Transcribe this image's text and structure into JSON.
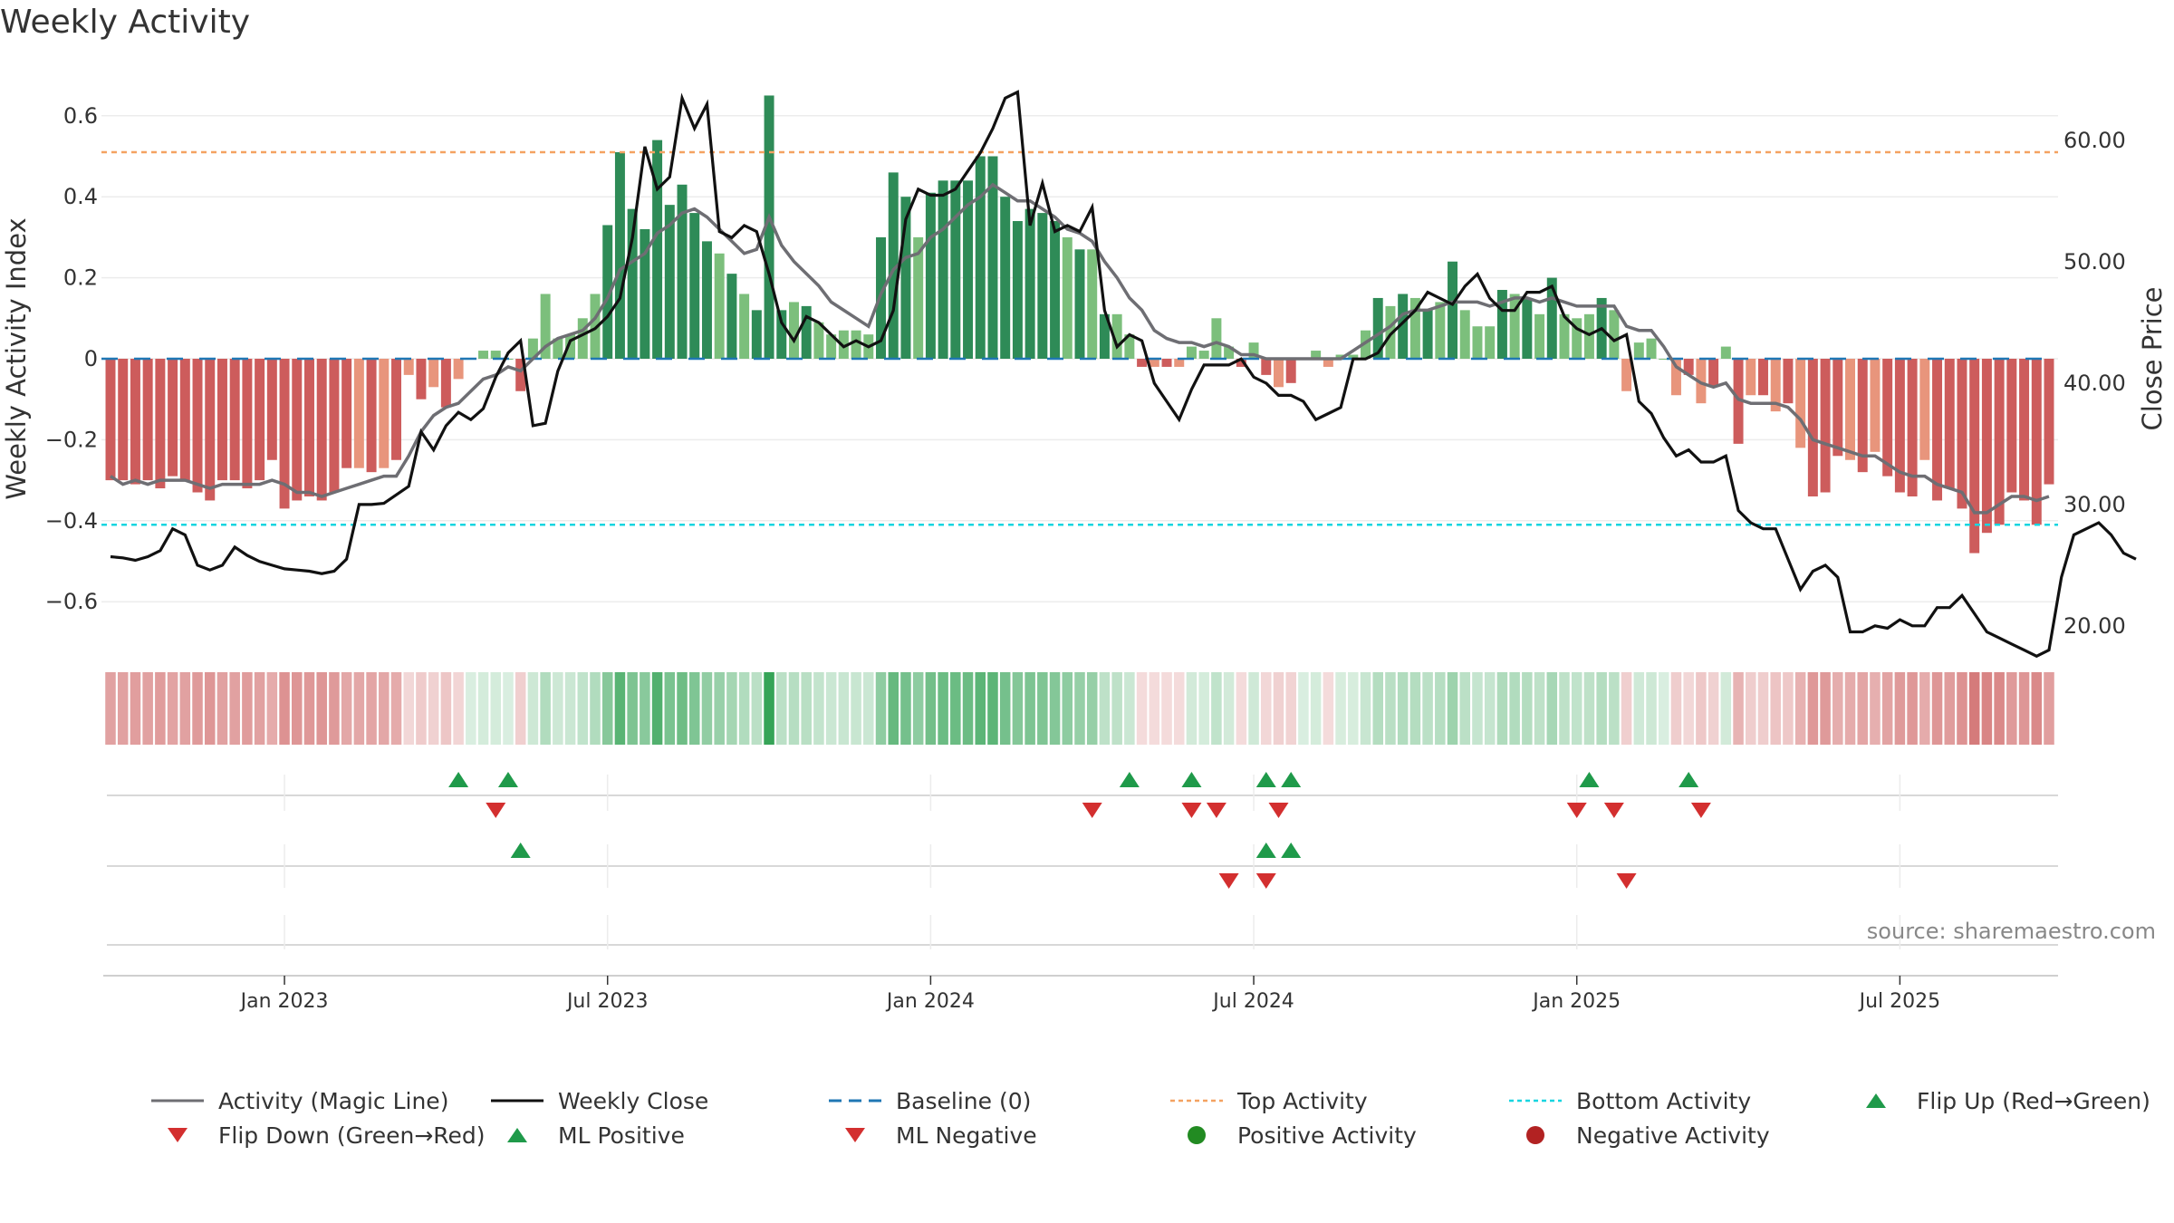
{
  "colors": {
    "strong_green": "#2e8b57",
    "light_green": "#7cbf7c",
    "strong_red": "#cd5c5c",
    "light_red": "#e8957c",
    "magic_line": "#6e6e73",
    "close_line": "#111111",
    "baseline": "#1f77b4",
    "top_line": "#f4a261",
    "bottom_line": "#17d5e0",
    "marker_green": "#1f9a4a",
    "marker_red": "#d32f2f"
  },
  "chart_data": {
    "type": "bar+line",
    "title": "Weekly Activity",
    "ylabel_left": "Weekly Activity Index",
    "ylabel_right": "Close Price",
    "source": "source: sharemaestro.com",
    "left_ticks": [
      "0.6",
      "0.4",
      "0.2",
      "0",
      "−0.2",
      "−0.4",
      "−0.6"
    ],
    "left_tick_values": [
      0.6,
      0.4,
      0.2,
      0,
      -0.2,
      -0.4,
      -0.6
    ],
    "right_ticks": [
      "60.00",
      "50.00",
      "40.00",
      "30.00",
      "20.00"
    ],
    "right_tick_values": [
      60,
      50,
      40,
      30,
      20
    ],
    "ylim_left": [
      -0.7,
      0.7
    ],
    "ylim_right": [
      18,
      66.5
    ],
    "x_ticks": [
      "Jan 2023",
      "Jul 2023",
      "Jan 2024",
      "Jul 2024",
      "Jan 2025",
      "Jul 2025"
    ],
    "x_tick_weeks": [
      14,
      40,
      66,
      92,
      118,
      144
    ],
    "top_activity": 0.51,
    "bottom_activity": -0.41,
    "activity": [
      -0.3,
      -0.3,
      -0.31,
      -0.3,
      -0.32,
      -0.29,
      -0.3,
      -0.33,
      -0.35,
      -0.3,
      -0.3,
      -0.32,
      -0.3,
      -0.25,
      -0.37,
      -0.35,
      -0.34,
      -0.35,
      -0.33,
      -0.27,
      -0.27,
      -0.28,
      -0.27,
      -0.25,
      -0.04,
      -0.1,
      -0.07,
      -0.12,
      -0.05,
      0.0,
      0.02,
      0.02,
      0.0,
      -0.08,
      0.05,
      0.16,
      0.05,
      0.06,
      0.1,
      0.16,
      0.33,
      0.51,
      0.37,
      0.32,
      0.54,
      0.38,
      0.43,
      0.36,
      0.29,
      0.26,
      0.21,
      0.16,
      0.12,
      0.65,
      0.12,
      0.14,
      0.13,
      0.09,
      0.06,
      0.07,
      0.07,
      0.06,
      0.3,
      0.46,
      0.4,
      0.3,
      0.41,
      0.44,
      0.44,
      0.44,
      0.5,
      0.5,
      0.4,
      0.34,
      0.37,
      0.36,
      0.34,
      0.3,
      0.27,
      0.27,
      0.11,
      0.11,
      0.06,
      -0.02,
      -0.02,
      -0.02,
      -0.02,
      0.03,
      0.02,
      0.1,
      0.03,
      -0.02,
      0.04,
      -0.04,
      -0.07,
      -0.06,
      0.0,
      0.02,
      -0.02,
      0.01,
      0.01,
      0.07,
      0.15,
      0.13,
      0.16,
      0.15,
      0.12,
      0.14,
      0.24,
      0.12,
      0.08,
      0.08,
      0.17,
      0.16,
      0.15,
      0.11,
      0.2,
      0.11,
      0.1,
      0.11,
      0.15,
      0.12,
      -0.08,
      0.04,
      0.05,
      0.0,
      -0.09,
      -0.04,
      -0.11,
      -0.07,
      0.03,
      -0.21,
      -0.09,
      -0.09,
      -0.13,
      -0.11,
      -0.22,
      -0.34,
      -0.33,
      -0.24,
      -0.25,
      -0.28,
      -0.23,
      -0.29,
      -0.33,
      -0.34,
      -0.25,
      -0.35,
      -0.32,
      -0.37,
      -0.48,
      -0.43,
      -0.41,
      -0.33,
      -0.35,
      -0.41,
      -0.31
    ],
    "magic_line": [
      -0.29,
      -0.31,
      -0.3,
      -0.31,
      -0.3,
      -0.3,
      -0.3,
      -0.31,
      -0.32,
      -0.31,
      -0.31,
      -0.31,
      -0.31,
      -0.3,
      -0.31,
      -0.33,
      -0.33,
      -0.34,
      -0.33,
      -0.32,
      -0.31,
      -0.3,
      -0.29,
      -0.29,
      -0.24,
      -0.18,
      -0.14,
      -0.12,
      -0.11,
      -0.08,
      -0.05,
      -0.04,
      -0.02,
      -0.03,
      0.0,
      0.03,
      0.05,
      0.06,
      0.07,
      0.1,
      0.15,
      0.22,
      0.24,
      0.26,
      0.31,
      0.33,
      0.36,
      0.37,
      0.35,
      0.32,
      0.29,
      0.26,
      0.27,
      0.35,
      0.28,
      0.24,
      0.21,
      0.18,
      0.14,
      0.12,
      0.1,
      0.08,
      0.16,
      0.22,
      0.25,
      0.26,
      0.3,
      0.32,
      0.35,
      0.38,
      0.4,
      0.43,
      0.41,
      0.39,
      0.39,
      0.37,
      0.35,
      0.32,
      0.31,
      0.29,
      0.24,
      0.2,
      0.15,
      0.12,
      0.07,
      0.05,
      0.04,
      0.04,
      0.03,
      0.04,
      0.03,
      0.01,
      0.01,
      0.0,
      0.0,
      0.0,
      0.0,
      0.0,
      0.0,
      0.0,
      0.02,
      0.04,
      0.06,
      0.08,
      0.11,
      0.12,
      0.12,
      0.13,
      0.14,
      0.14,
      0.14,
      0.13,
      0.14,
      0.15,
      0.15,
      0.14,
      0.15,
      0.14,
      0.13,
      0.13,
      0.13,
      0.13,
      0.08,
      0.07,
      0.07,
      0.03,
      -0.02,
      -0.04,
      -0.06,
      -0.07,
      -0.06,
      -0.1,
      -0.11,
      -0.11,
      -0.11,
      -0.12,
      -0.15,
      -0.2,
      -0.21,
      -0.22,
      -0.23,
      -0.24,
      -0.24,
      -0.26,
      -0.28,
      -0.29,
      -0.29,
      -0.31,
      -0.32,
      -0.33,
      -0.38,
      -0.38,
      -0.36,
      -0.34,
      -0.34,
      -0.35,
      -0.34
    ],
    "close": [
      25.7,
      25.6,
      25.4,
      25.7,
      26.2,
      28.0,
      27.5,
      25.0,
      24.6,
      25.0,
      26.5,
      25.8,
      25.3,
      25.0,
      24.7,
      24.6,
      24.5,
      24.3,
      24.5,
      25.5,
      30.0,
      30.0,
      30.1,
      30.8,
      31.5,
      36.0,
      34.5,
      36.5,
      37.6,
      37.0,
      37.9,
      40.5,
      42.5,
      43.5,
      36.5,
      36.7,
      41.0,
      43.5,
      44.0,
      44.5,
      45.5,
      47.0,
      52.0,
      59.5,
      56.0,
      57.0,
      63.5,
      61.0,
      63.0,
      52.5,
      52.0,
      53.0,
      52.5,
      49.0,
      45.0,
      43.5,
      45.5,
      45.0,
      44.0,
      43.0,
      43.5,
      43.0,
      43.5,
      46.0,
      53.5,
      56.0,
      55.5,
      55.5,
      56.0,
      57.5,
      59.0,
      61.0,
      63.5,
      64.0,
      53.0,
      56.5,
      52.5,
      53.0,
      52.5,
      54.5,
      46.0,
      43.0,
      44.0,
      43.5,
      40.0,
      38.5,
      37.0,
      39.5,
      41.5,
      41.5,
      41.5,
      42.0,
      40.5,
      40.0,
      39.0,
      39.0,
      38.5,
      37.0,
      37.5,
      38.0,
      42.0,
      42.0,
      42.5,
      44.0,
      45.0,
      46.0,
      47.5,
      47.0,
      46.5,
      48.0,
      49.0,
      47.0,
      46.0,
      46.0,
      47.5,
      47.5,
      48.0,
      45.5,
      44.5,
      44.0,
      44.5,
      43.5,
      44.0,
      38.5,
      37.5,
      35.5,
      34.0,
      34.5,
      33.5,
      33.5,
      34.0,
      29.5,
      28.5,
      28.0,
      28.0,
      25.5,
      23.0,
      24.5,
      25.0,
      24.0,
      19.5,
      19.5,
      20.0,
      19.8,
      20.5,
      20.0,
      20.0,
      21.5,
      21.5,
      22.5,
      21.0,
      19.5,
      19.0,
      18.5,
      18.0,
      17.5,
      18.0,
      24.0,
      27.5,
      28.0,
      28.5,
      27.5,
      26.0,
      25.5
    ],
    "flip_up": [
      28,
      32,
      82,
      87,
      93,
      95,
      119,
      127
    ],
    "flip_down": [
      31,
      79,
      87,
      89,
      94,
      118,
      121,
      128
    ],
    "ml_positive": [
      33,
      93,
      95
    ],
    "ml_negative": [
      90,
      93,
      122
    ],
    "legend": [
      "Activity (Magic Line)",
      "Weekly Close",
      "Baseline (0)",
      "Top Activity",
      "Bottom Activity",
      "Flip Up (Red→Green)",
      "Flip Down (Green→Red)",
      "ML Positive",
      "ML Negative",
      "Positive Activity",
      "Negative Activity"
    ]
  }
}
